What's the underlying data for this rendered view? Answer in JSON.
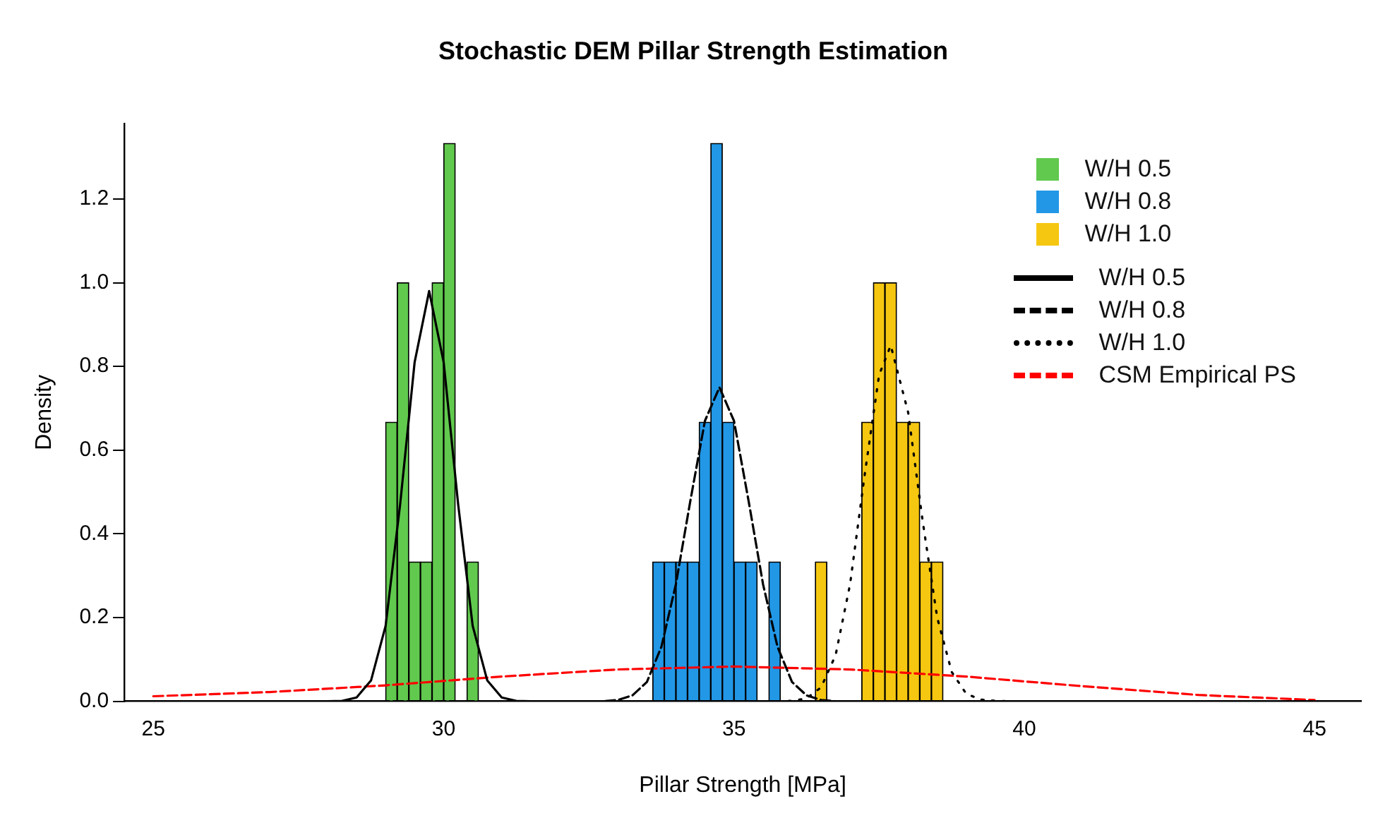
{
  "chart_data": {
    "type": "histogram",
    "title": "Stochastic DEM Pillar Strength Estimation",
    "xlabel": "Pillar Strength [MPa]",
    "ylabel": "Density",
    "xlim": [
      24.5,
      45.8
    ],
    "ylim": [
      0,
      1.38
    ],
    "xticks": [
      25,
      30,
      35,
      40,
      45
    ],
    "yticks": [
      {
        "value": 0,
        "label": "0.0"
      },
      {
        "value": 0.2,
        "label": "0.2"
      },
      {
        "value": 0.4,
        "label": "0.4"
      },
      {
        "value": 0.6,
        "label": "0.6"
      },
      {
        "value": 0.8,
        "label": "0.8"
      },
      {
        "value": 1,
        "label": "1.0"
      },
      {
        "value": 1.2,
        "label": "1.2"
      }
    ],
    "grid": false,
    "legend": "top right",
    "series": [
      {
        "name": "W/H 0.5",
        "color": "#61c94e",
        "bins": [
          29.0,
          29.2,
          29.4,
          29.6,
          29.8,
          30.0,
          30.2,
          30.4,
          30.6
        ],
        "values": [
          0.667,
          1.0,
          0.333,
          0.333,
          1.0,
          1.333,
          0,
          0.333
        ]
      },
      {
        "name": "W/H 0.8",
        "color": "#2297e6",
        "bins": [
          33.6,
          33.8,
          34.0,
          34.2,
          34.4,
          34.6,
          34.8,
          35.0,
          35.2,
          35.4,
          35.6,
          35.8
        ],
        "values": [
          0.333,
          0.333,
          0.333,
          0.333,
          0.667,
          1.333,
          0.667,
          0.333,
          0.333,
          0,
          0.333
        ]
      },
      {
        "name": "W/H 1.0",
        "color": "#f5c710",
        "bins": [
          36.4,
          36.6,
          36.8,
          37.0,
          37.2,
          37.4,
          37.6,
          37.8,
          38.0,
          38.2,
          38.4,
          38.6
        ],
        "values": [
          0.333,
          0,
          0,
          0,
          0.667,
          1.0,
          1.0,
          0.667,
          0.667,
          0.333,
          0.333
        ]
      },
      {
        "type": "line",
        "name": "W/H 0.5",
        "color": "#000000",
        "line_style": "solid",
        "x": [
          25,
          28.0,
          28.25,
          28.5,
          28.75,
          29.0,
          29.25,
          29.5,
          29.75,
          30.0,
          30.25,
          30.5,
          30.75,
          31.0,
          31.25,
          31.5,
          45
        ],
        "values": [
          0,
          0,
          0.001,
          0.009,
          0.05,
          0.18,
          0.47,
          0.81,
          0.98,
          0.81,
          0.47,
          0.18,
          0.05,
          0.009,
          0.001,
          0,
          0
        ]
      },
      {
        "type": "line",
        "name": "W/H 0.8",
        "color": "#000000",
        "line_style": "dashed",
        "x": [
          25,
          32.75,
          33.0,
          33.25,
          33.5,
          33.75,
          34.0,
          34.25,
          34.5,
          34.75,
          35.0,
          35.25,
          35.5,
          35.75,
          36.0,
          36.25,
          36.5,
          36.75,
          45
        ],
        "values": [
          0,
          0,
          0.003,
          0.014,
          0.046,
          0.13,
          0.28,
          0.48,
          0.67,
          0.75,
          0.67,
          0.48,
          0.28,
          0.13,
          0.046,
          0.014,
          0.003,
          0,
          0
        ]
      },
      {
        "type": "line",
        "name": "W/H 1.0",
        "color": "#000000",
        "line_style": "dotted",
        "x": [
          25,
          35.75,
          36.0,
          36.25,
          36.5,
          36.75,
          37.0,
          37.25,
          37.5,
          37.7,
          38.0,
          38.25,
          38.5,
          38.75,
          39.0,
          39.25,
          39.5,
          39.75,
          45
        ],
        "values": [
          0,
          0,
          0.001,
          0.007,
          0.033,
          0.11,
          0.28,
          0.54,
          0.78,
          0.85,
          0.69,
          0.43,
          0.2,
          0.07,
          0.018,
          0.004,
          0.001,
          0,
          0
        ]
      },
      {
        "type": "line",
        "name": "CSM Empirical PS",
        "color": "#ff0000",
        "line_style": "dashed",
        "x": [
          25,
          27,
          29,
          31,
          33,
          35,
          37,
          39,
          41,
          43,
          45
        ],
        "values": [
          0.012,
          0.022,
          0.038,
          0.059,
          0.076,
          0.083,
          0.076,
          0.059,
          0.036,
          0.015,
          0.003
        ]
      }
    ]
  }
}
